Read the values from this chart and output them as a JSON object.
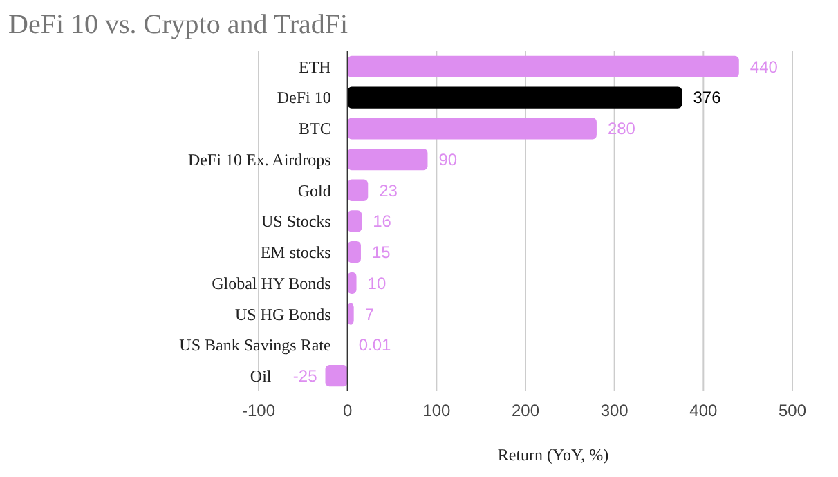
{
  "chart_data": {
    "type": "bar",
    "orientation": "horizontal",
    "title": "DeFi 10 vs. Crypto and TradFi",
    "xlabel": "Return (YoY, %)",
    "categories": [
      "ETH",
      "DeFi 10",
      "BTC",
      "DeFi 10 Ex. Airdrops",
      "Gold",
      "US Stocks",
      "EM stocks",
      "Global HY Bonds",
      "US HG Bonds",
      "US Bank Savings Rate",
      "Oil"
    ],
    "values": [
      440,
      376,
      280,
      90,
      23,
      16,
      15,
      10,
      7,
      0.01,
      -25
    ],
    "colors": [
      "#dd8ef0",
      "#000000",
      "#dd8ef0",
      "#dd8ef0",
      "#dd8ef0",
      "#dd8ef0",
      "#dd8ef0",
      "#dd8ef0",
      "#dd8ef0",
      "#dd8ef0",
      "#dd8ef0"
    ],
    "xlim": [
      -100,
      500
    ],
    "xticks": [
      -100,
      0,
      100,
      200,
      300,
      400,
      500
    ],
    "grid": "x",
    "data_labels": true
  }
}
